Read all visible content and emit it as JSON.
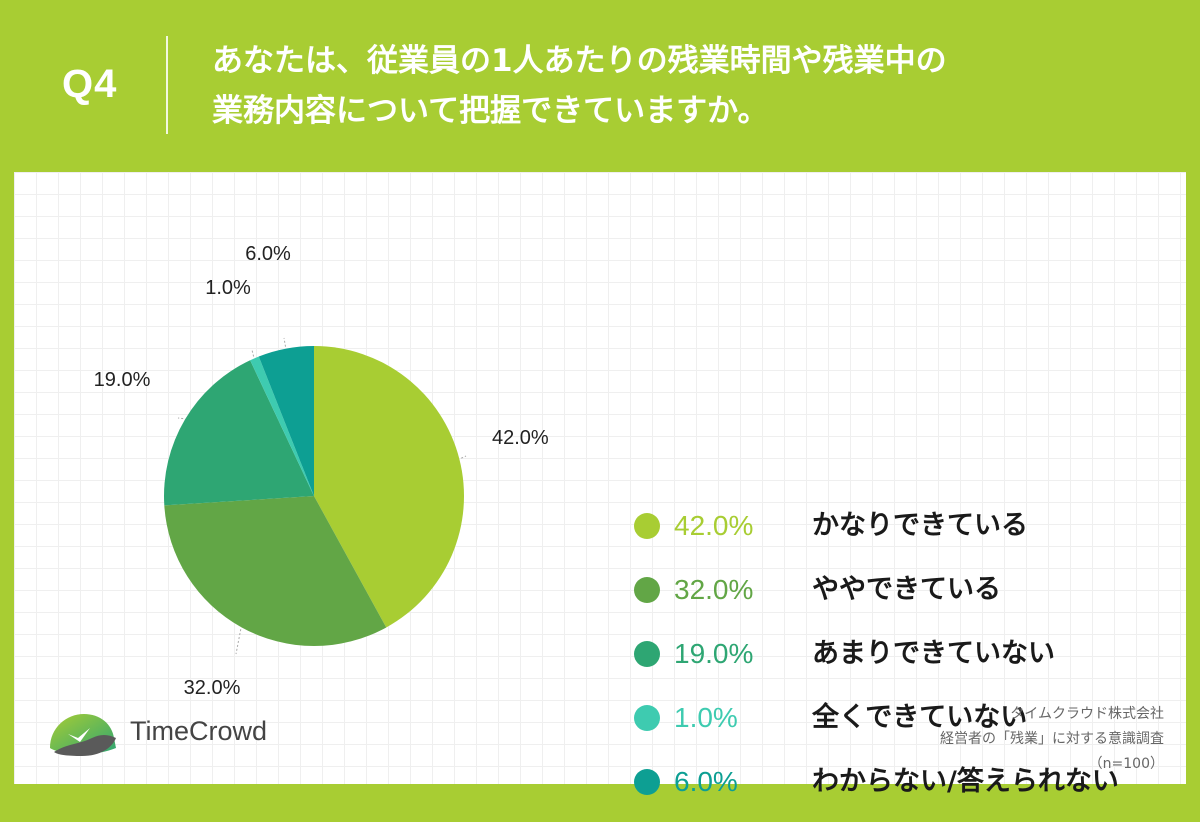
{
  "question": {
    "label": "Q4",
    "line1": "あなたは、従業員の1人あたりの残業時間や残業中の",
    "line2": "業務内容について把握できていますか。"
  },
  "colors": {
    "background": "#a8cd33",
    "slices": [
      "#a8cd33",
      "#62a646",
      "#2ea673",
      "#3ecbb0",
      "#0d9f93"
    ]
  },
  "chart_data": {
    "type": "pie",
    "title": "",
    "categories": [
      "かなりできている",
      "ややできている",
      "あまりできていない",
      "全くできていない",
      "わからない/答えられない"
    ],
    "values": [
      42.0,
      32.0,
      19.0,
      1.0,
      6.0
    ],
    "value_labels": [
      "42.0%",
      "32.0%",
      "19.0%",
      "1.0%",
      "6.0%"
    ],
    "unit": "%",
    "legend_position": "right"
  },
  "legend": [
    {
      "pct": "42.0%",
      "label": "かなりできている"
    },
    {
      "pct": "32.0%",
      "label": "ややできている"
    },
    {
      "pct": "19.0%",
      "label": "あまりできていない"
    },
    {
      "pct": "1.0%",
      "label": "全くできていない"
    },
    {
      "pct": "6.0%",
      "label": "わからない/答えられない"
    }
  ],
  "logo": {
    "text": "TimeCrowd",
    "icon": "timecrowd-bird-logo-icon"
  },
  "footer": {
    "company": "タイムクラウド株式会社",
    "survey": "経営者の「残業」に対する意識調査",
    "sample": "（n=100）"
  }
}
